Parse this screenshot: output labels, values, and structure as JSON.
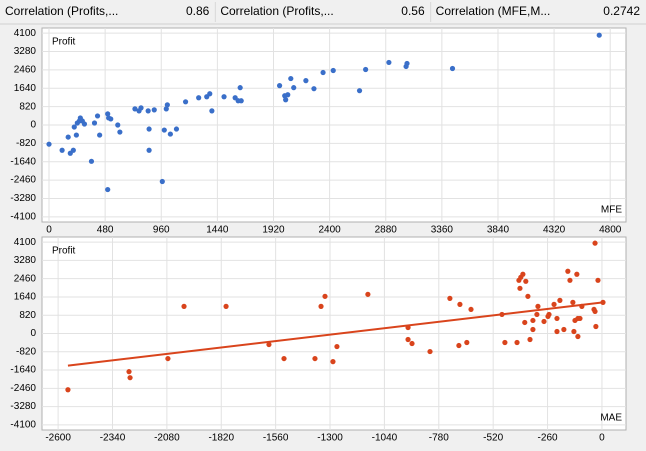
{
  "header": [
    {
      "label": "Correlation (Profits,...",
      "value": 0.86
    },
    {
      "label": "Correlation (Profits,...",
      "value": 0.56
    },
    {
      "label": "Correlation (MFE,M...",
      "value": 0.2742
    }
  ],
  "chart_data": [
    {
      "type": "scatter",
      "ylabel": "Profit",
      "xlabel": "MFE",
      "color": "#3a6fc9",
      "grid": true,
      "x": [
        0,
        112,
        164,
        182,
        208,
        216,
        234,
        242,
        260,
        268,
        285,
        303,
        363,
        389,
        415,
        433,
        502,
        502,
        510,
        528,
        588,
        606,
        735,
        770,
        787,
        848,
        856,
        856,
        900,
        969,
        986,
        1003,
        1012,
        1038,
        1090,
        1168,
        1280,
        1349,
        1375,
        1393,
        1497,
        1592,
        1618,
        1635,
        1644,
        1972,
        2016,
        2024,
        2042,
        2068,
        2093,
        2197,
        2266,
        2344,
        2431,
        2656,
        2708,
        2907,
        3054,
        3062,
        3451,
        4706
      ],
      "values": [
        -856,
        -1126,
        -540,
        -1261,
        -1126,
        -90,
        -450,
        90,
        180,
        315,
        180,
        45,
        -1622,
        90,
        405,
        -450,
        -2883,
        495,
        315,
        270,
        0,
        -315,
        720,
        630,
        765,
        630,
        -180,
        -1126,
        675,
        -2523,
        -225,
        720,
        900,
        -405,
        -180,
        1036,
        1216,
        1261,
        1396,
        630,
        1261,
        1216,
        1081,
        1667,
        1081,
        1757,
        1306,
        1126,
        1351,
        2072,
        1667,
        1982,
        1622,
        2342,
        2432,
        1532,
        2477,
        2793,
        2613,
        2748,
        2523,
        4009
      ],
      "xlim": [
        -60,
        4935
      ],
      "ylim": [
        -4330,
        4330
      ],
      "xticks": [
        0,
        480,
        960,
        1440,
        1920,
        2400,
        2880,
        3360,
        3840,
        4320,
        4800
      ],
      "yticks": [
        4100,
        3280,
        2460,
        1640,
        820,
        0,
        -820,
        -1640,
        -2460,
        -3280,
        -4100
      ]
    },
    {
      "type": "scatter",
      "ylabel": "Profit",
      "xlabel": "MAE",
      "color": "#d9441c",
      "grid": true,
      "x": [
        -2553,
        -2261,
        -2256,
        -2075,
        -1998,
        -1797,
        -1592,
        -1520,
        -1372,
        -1343,
        -1324,
        -1286,
        -1267,
        -1119,
        -927,
        -927,
        -908,
        -822,
        -727,
        -684,
        -679,
        -646,
        -626,
        -478,
        -464,
        -406,
        -397,
        -392,
        -388,
        -378,
        -369,
        -364,
        -354,
        -344,
        -330,
        -330,
        -311,
        -306,
        -277,
        -258,
        -253,
        -229,
        -215,
        -215,
        -201,
        -182,
        -163,
        -153,
        -139,
        -134,
        -129,
        -120,
        -115,
        -115,
        -105,
        -96,
        -33,
        -38,
        -33,
        -19,
        -29,
        5
      ],
      "values": [
        -2523,
        -1712,
        -1982,
        -1126,
        1216,
        1216,
        -495,
        -1126,
        -1126,
        1216,
        1667,
        -1261,
        -586,
        1757,
        270,
        -270,
        -450,
        -811,
        1577,
        -540,
        1306,
        -405,
        1081,
        856,
        -405,
        -405,
        2387,
        2027,
        2522,
        2658,
        495,
        2342,
        1667,
        -270,
        586,
        180,
        856,
        1216,
        540,
        766,
        856,
        1306,
        90,
        676,
        1486,
        180,
        2793,
        2387,
        1396,
        90,
        586,
        2658,
        676,
        -135,
        676,
        1216,
        4054,
        1081,
        991,
        2387,
        315,
        1396
      ],
      "trend_line": {
        "x": [
          -2553,
          5
        ],
        "values": [
          -1441,
          1396
        ]
      },
      "xlim": [
        -2677,
        115
      ],
      "ylim": [
        -4330,
        4330
      ],
      "xticks": [
        -2600,
        -2340,
        -2080,
        -1820,
        -1560,
        -1300,
        -1040,
        -780,
        -520,
        -260,
        0
      ],
      "yticks": [
        4100,
        3280,
        2460,
        1640,
        820,
        0,
        -820,
        -1640,
        -2460,
        -3280,
        -4100
      ]
    }
  ]
}
